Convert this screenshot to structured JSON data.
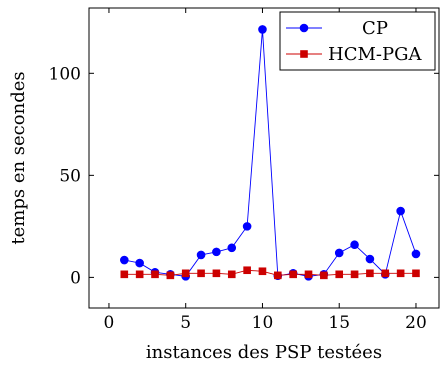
{
  "chart_data": {
    "type": "line",
    "xlabel": "instances des PSP testées",
    "ylabel": "temps en secondes",
    "xlim": [
      -1.3,
      21.5
    ],
    "ylim": [
      -15,
      132
    ],
    "x_ticks": [
      0,
      5,
      10,
      15,
      20
    ],
    "y_ticks": [
      0,
      50,
      100
    ],
    "grid": false,
    "legend_position": "top-right",
    "x": [
      1,
      2,
      3,
      4,
      5,
      6,
      7,
      8,
      9,
      10,
      11,
      12,
      13,
      14,
      15,
      16,
      17,
      18,
      19,
      20
    ],
    "series": [
      {
        "name": "CP",
        "color": "#0000ff",
        "marker": "circle",
        "values": [
          8.5,
          7,
          2.5,
          1.5,
          0.5,
          11,
          12.5,
          14.5,
          25,
          121.5,
          0.8,
          2,
          0.5,
          1.5,
          12,
          16,
          9,
          1.5,
          32.5,
          11.5
        ]
      },
      {
        "name": "HCM-PGA",
        "color": "#cc0000",
        "marker": "square",
        "values": [
          1.5,
          1.5,
          1.5,
          1,
          2,
          2,
          2,
          1.5,
          3.5,
          3,
          1,
          1.5,
          1.5,
          1,
          1.5,
          1.5,
          2,
          2,
          2,
          2
        ]
      }
    ]
  }
}
